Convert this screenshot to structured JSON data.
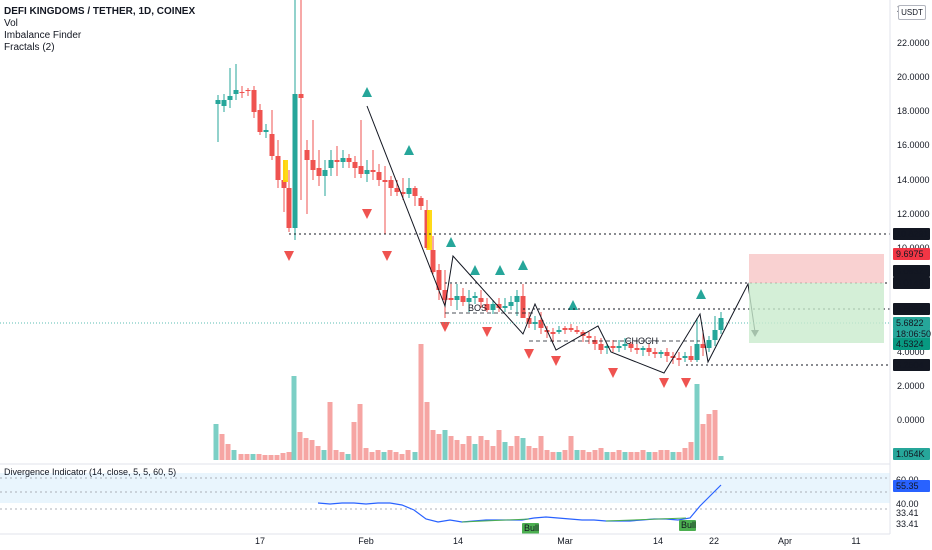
{
  "header": {
    "title": "DEFI KINGDOMS / TETHER, 1D, COINEX",
    "indicators": [
      "Vol",
      "Imbalance Finder",
      "Fractals (2)"
    ]
  },
  "currency_button": "USDT",
  "divergence_title": "Divergence Indicator (14, close, 5, 5, 60, 5)",
  "colors": {
    "up": "#26a69a",
    "down": "#ef5350",
    "imbalance": "#ffd600",
    "rsi": "#2962ff"
  },
  "chart_data": {
    "type": "candlestick",
    "price_ticks": [
      "2",
      "22.0000",
      "20.0000",
      "18.0000",
      "16.0000",
      "14.0000",
      "12.0000",
      "10.0000",
      "4.0000",
      "2.0000",
      "0.0000"
    ],
    "x_ticks": [
      "17",
      "Feb",
      "14",
      "Mar",
      "14",
      "22",
      "Apr",
      "11"
    ],
    "levels": [
      {
        "label": "10.8291",
        "value": 10.8291
      },
      {
        "label": "9.6975",
        "value": 9.6975
      },
      {
        "label": "8.0932",
        "value": 8.0932
      },
      {
        "label": "8.0149",
        "value": 8.0149
      },
      {
        "label": "6.5054",
        "value": 6.5054
      },
      {
        "label": "5.6822",
        "value": 5.6822
      },
      {
        "label": "18:06:50",
        "value": null
      },
      {
        "label": "4.5324",
        "value": 4.5324
      },
      {
        "label": "3.2504",
        "value": 3.2504
      }
    ],
    "annotations": [
      "BOS",
      "CHOCH"
    ],
    "divergence_labels": [
      "Bull",
      "Bull"
    ],
    "volume_label": "1.054K",
    "rsi_levels": [
      "60.00",
      "55.35",
      "40.00",
      "33.41",
      "33.41"
    ],
    "rsi_current": 55.35
  }
}
